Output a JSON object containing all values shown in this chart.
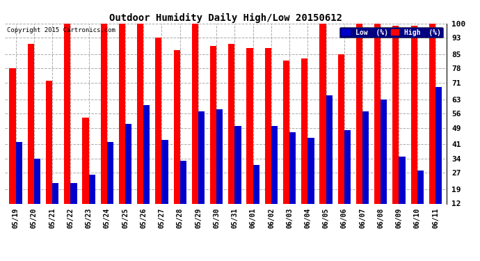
{
  "title": "Outdoor Humidity Daily High/Low 20150612",
  "copyright": "Copyright 2015 Cartronics.com",
  "dates": [
    "05/19",
    "05/20",
    "05/21",
    "05/22",
    "05/23",
    "05/24",
    "05/25",
    "05/26",
    "05/27",
    "05/28",
    "05/29",
    "05/30",
    "05/31",
    "06/01",
    "06/02",
    "06/03",
    "06/04",
    "06/05",
    "06/06",
    "06/07",
    "06/08",
    "06/09",
    "06/10",
    "06/11"
  ],
  "high": [
    78,
    90,
    72,
    100,
    54,
    100,
    100,
    100,
    93,
    87,
    100,
    89,
    90,
    88,
    88,
    82,
    83,
    100,
    85,
    100,
    100,
    99,
    99,
    100
  ],
  "low": [
    42,
    34,
    22,
    22,
    26,
    42,
    51,
    60,
    43,
    33,
    57,
    58,
    50,
    31,
    50,
    47,
    44,
    65,
    48,
    57,
    63,
    35,
    28,
    69
  ],
  "high_color": "#ff0000",
  "low_color": "#0000cc",
  "bg_color": "#ffffff",
  "grid_color": "#aaaaaa",
  "ylim": [
    12,
    100
  ],
  "yticks": [
    12,
    19,
    27,
    34,
    41,
    49,
    56,
    63,
    71,
    78,
    85,
    93,
    100
  ],
  "bar_width": 0.35,
  "legend_bg": "#000080"
}
